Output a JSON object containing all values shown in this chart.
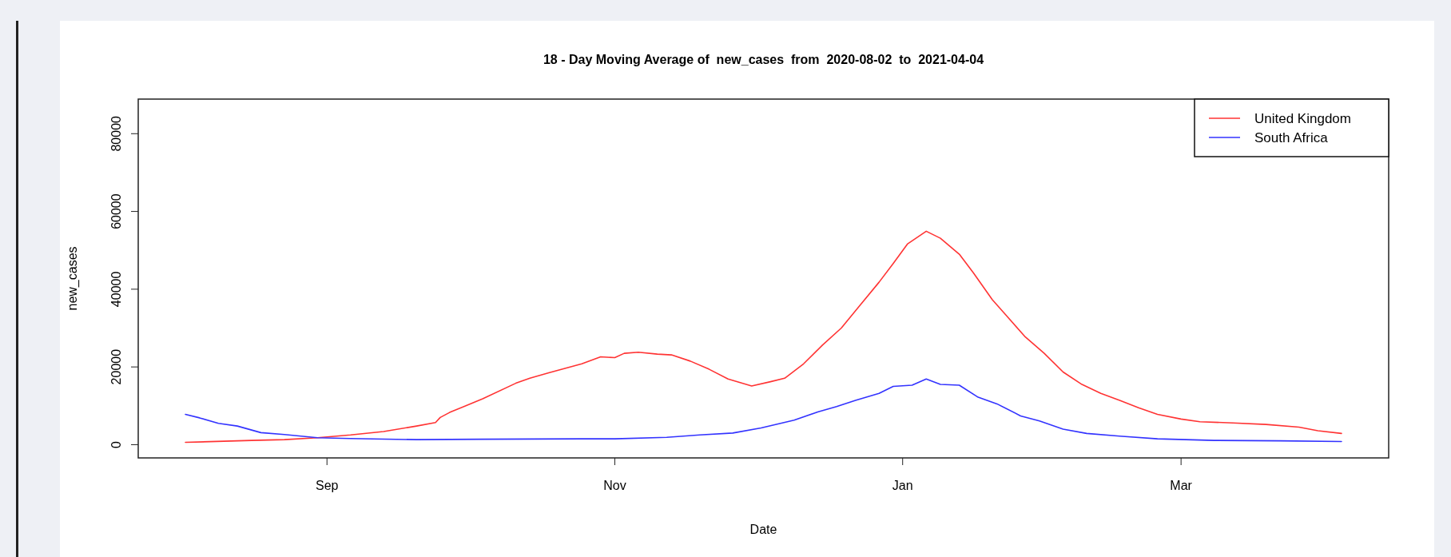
{
  "chart_data": {
    "type": "line",
    "title": "18 - Day Moving Average of  new_cases  from  2020-08-02  to  2021-04-04",
    "xlabel": "Date",
    "ylabel": "new_cases",
    "xlim": [
      "2020-07-23",
      "2021-04-14"
    ],
    "ylim": [
      -3400,
      88900
    ],
    "xticks": [
      {
        "value": "2020-09-01",
        "label": "Sep"
      },
      {
        "value": "2020-11-01",
        "label": "Nov"
      },
      {
        "value": "2021-01-01",
        "label": "Jan"
      },
      {
        "value": "2021-03-01",
        "label": "Mar"
      }
    ],
    "yticks": [
      0,
      20000,
      40000,
      60000,
      80000
    ],
    "legend": "top right",
    "marker": "none",
    "line_style": "solid",
    "series": [
      {
        "name": "United Kingdom",
        "color": "#ff3333",
        "x": [
          "2020-08-02",
          "2020-08-16",
          "2020-08-23",
          "2020-08-30",
          "2020-09-06",
          "2020-09-13",
          "2020-09-20",
          "2020-09-24",
          "2020-09-25",
          "2020-09-27",
          "2020-10-04",
          "2020-10-11",
          "2020-10-14",
          "2020-10-18",
          "2020-10-25",
          "2020-10-29",
          "2020-11-01",
          "2020-11-03",
          "2020-11-06",
          "2020-11-10",
          "2020-11-13",
          "2020-11-17",
          "2020-11-21",
          "2020-11-25",
          "2020-11-30",
          "2020-12-04",
          "2020-12-07",
          "2020-12-11",
          "2020-12-15",
          "2020-12-19",
          "2020-12-23",
          "2020-12-27",
          "2020-12-30",
          "2021-01-02",
          "2021-01-06",
          "2021-01-09",
          "2021-01-13",
          "2021-01-16",
          "2021-01-20",
          "2021-01-23",
          "2021-01-27",
          "2021-01-31",
          "2021-02-04",
          "2021-02-08",
          "2021-02-12",
          "2021-02-16",
          "2021-02-20",
          "2021-02-24",
          "2021-03-01",
          "2021-03-05",
          "2021-03-12",
          "2021-03-19",
          "2021-03-26",
          "2021-03-30",
          "2021-04-04"
        ],
        "values": [
          600,
          1100,
          1300,
          1800,
          2500,
          3400,
          4800,
          5700,
          7000,
          8300,
          11800,
          15800,
          17100,
          18500,
          20800,
          22600,
          22400,
          23500,
          23800,
          23300,
          23100,
          21500,
          19400,
          16900,
          15100,
          16200,
          17100,
          20800,
          25600,
          30000,
          35900,
          41800,
          46600,
          51600,
          54900,
          53100,
          49000,
          44200,
          37300,
          33200,
          27700,
          23500,
          18700,
          15500,
          13200,
          11400,
          9500,
          7800,
          6600,
          5900,
          5600,
          5200,
          4500,
          3600,
          2900
        ]
      },
      {
        "name": "South Africa",
        "color": "#3333ff",
        "x": [
          "2020-08-02",
          "2020-08-05",
          "2020-08-09",
          "2020-08-13",
          "2020-08-18",
          "2020-08-23",
          "2020-08-30",
          "2020-09-06",
          "2020-09-20",
          "2020-10-04",
          "2020-10-25",
          "2020-11-01",
          "2020-11-12",
          "2020-11-19",
          "2020-11-26",
          "2020-12-02",
          "2020-12-09",
          "2020-12-14",
          "2020-12-18",
          "2020-12-22",
          "2020-12-27",
          "2020-12-30",
          "2021-01-03",
          "2021-01-06",
          "2021-01-09",
          "2021-01-13",
          "2021-01-17",
          "2021-01-21",
          "2021-01-26",
          "2021-01-30",
          "2021-02-04",
          "2021-02-09",
          "2021-02-16",
          "2021-02-24",
          "2021-03-08",
          "2021-03-22",
          "2021-04-04"
        ],
        "values": [
          7800,
          6900,
          5500,
          4800,
          3100,
          2600,
          1800,
          1600,
          1300,
          1400,
          1500,
          1500,
          1900,
          2500,
          3000,
          4300,
          6300,
          8400,
          9800,
          11400,
          13200,
          15000,
          15300,
          16900,
          15500,
          15300,
          12200,
          10500,
          7400,
          6100,
          4000,
          2900,
          2200,
          1500,
          1100,
          1000,
          800
        ]
      }
    ]
  }
}
